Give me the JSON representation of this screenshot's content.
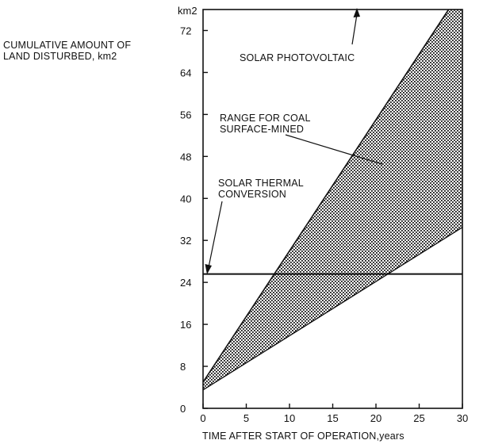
{
  "chart_data": {
    "type": "area",
    "ylabel_lines": [
      "CUMULATIVE AMOUNT OF",
      "LAND DISTURBED, km2"
    ],
    "y_unit": "km2",
    "xlabel": "TIME AFTER START OF OPERATION,years",
    "xlim": [
      0,
      30
    ],
    "ylim": [
      0,
      76
    ],
    "x_ticks": [
      0,
      5,
      10,
      15,
      20,
      25,
      30
    ],
    "y_ticks": [
      0,
      8,
      16,
      24,
      32,
      40,
      48,
      56,
      64,
      72
    ],
    "grid": false,
    "series": [
      {
        "name": "SOLAR PHOTOVOLTAIC",
        "x": [
          0,
          30
        ],
        "y": [
          5,
          80
        ]
      },
      {
        "name": "SOLAR THERMAL CONVERSION",
        "x": [
          0,
          30
        ],
        "y": [
          25.6,
          25.6
        ]
      },
      {
        "name": "RANGE FOR COAL SURFACE-MINED",
        "upper": {
          "x": [
            0,
            30
          ],
          "y": [
            5,
            80
          ]
        },
        "lower": {
          "x": [
            0,
            30
          ],
          "y": [
            3.5,
            34.5
          ]
        }
      }
    ],
    "annotations": [
      {
        "text": "SOLAR PHOTOVOLTAIC"
      },
      {
        "text_lines": [
          "RANGE FOR COAL",
          "SURFACE-MINED"
        ]
      },
      {
        "text_lines": [
          "SOLAR THERMAL",
          "CONVERSION"
        ]
      }
    ]
  }
}
